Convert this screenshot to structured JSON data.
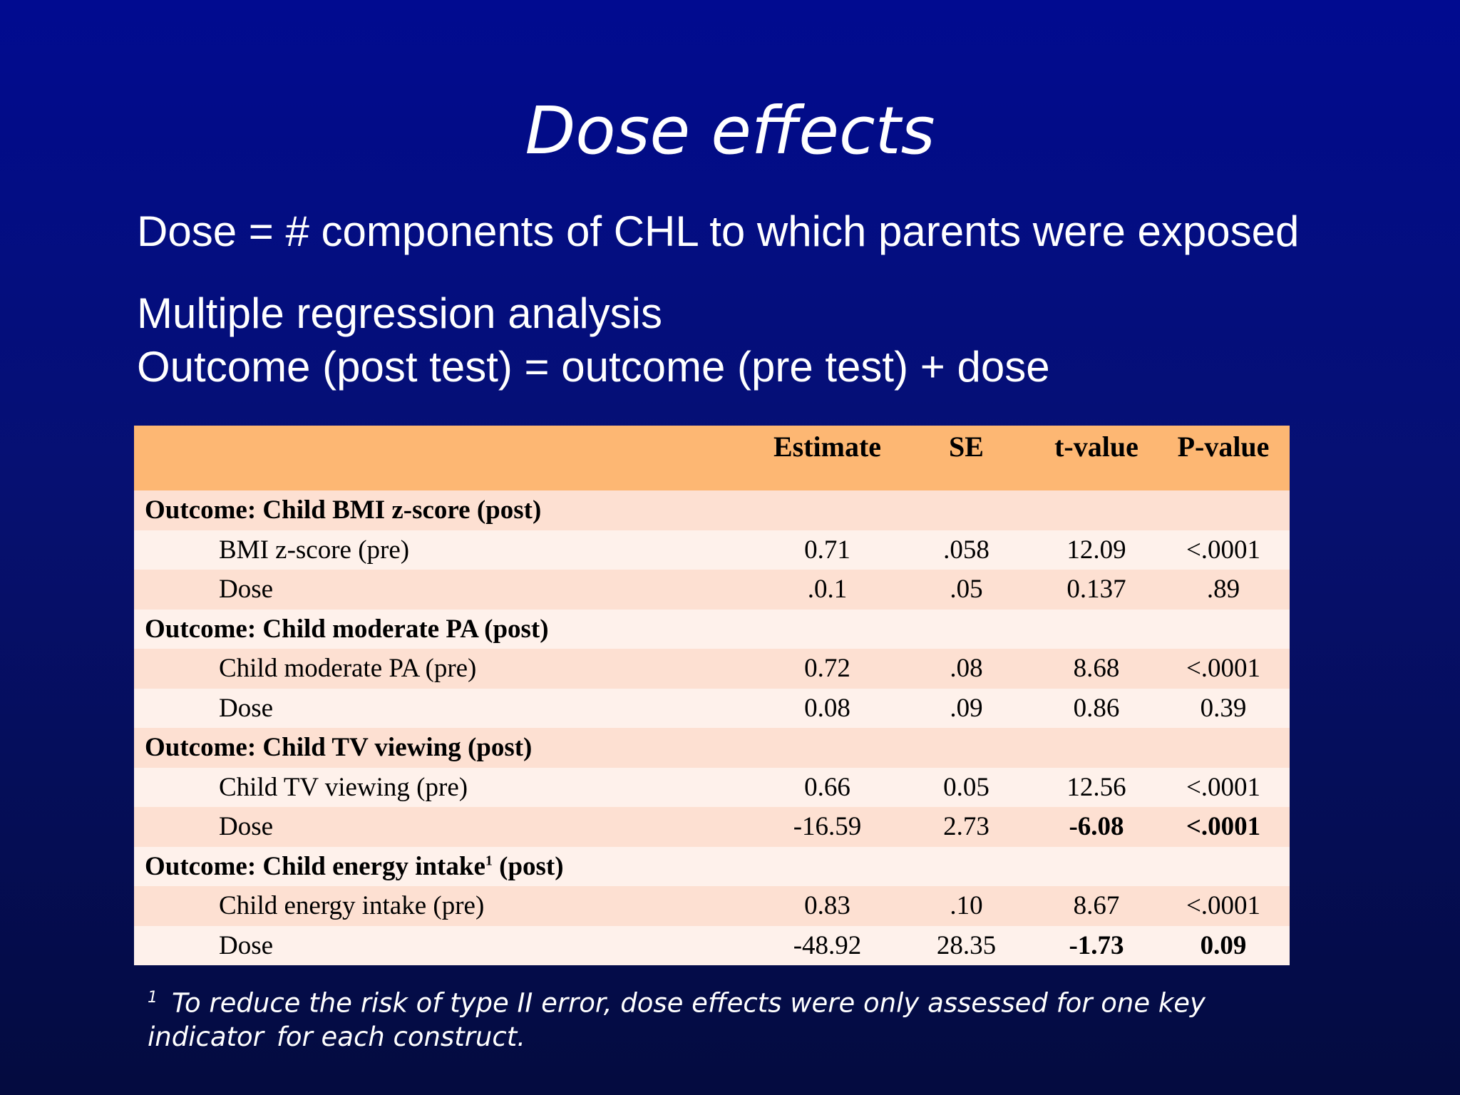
{
  "title": "Dose effects",
  "lines": [
    "Dose = # components of CHL to which parents were exposed",
    "Multiple regression analysis",
    "Outcome (post test) = outcome (pre test) + dose"
  ],
  "table": {
    "headers": [
      "",
      "Estimate",
      "SE",
      "t-value",
      "P-value"
    ],
    "groups": [
      {
        "label": "Outcome: Child BMI z-score (post)",
        "rows": [
          {
            "label": "BMI z-score (pre)",
            "estimate": "0.71",
            "se": ".058",
            "t": "12.09",
            "p": "<.0001"
          },
          {
            "label": "Dose",
            "estimate": ".0.1",
            "se": ".05",
            "t": "0.137",
            "p": ".89"
          }
        ]
      },
      {
        "label": "Outcome: Child moderate PA (post)",
        "rows": [
          {
            "label": "Child moderate PA (pre)",
            "estimate": "0.72",
            "se": ".08",
            "t": "8.68",
            "p": "<.0001"
          },
          {
            "label": "Dose",
            "estimate": "0.08",
            "se": ".09",
            "t": "0.86",
            "p": "0.39"
          }
        ]
      },
      {
        "label": "Outcome: Child TV viewing (post)",
        "rows": [
          {
            "label": "Child TV viewing (pre)",
            "estimate": "0.66",
            "se": "0.05",
            "t": "12.56",
            "p": "<.0001"
          },
          {
            "label": "Dose",
            "estimate": "-16.59",
            "se": "2.73",
            "t": "-6.08",
            "p": "<.0001"
          }
        ]
      },
      {
        "label_before": "Outcome: Child energy intake",
        "label_sup": "1",
        "label_after": " (post)",
        "rows": [
          {
            "label": "Child energy intake (pre)",
            "estimate": "0.83",
            "se": ".10",
            "t": "8.67",
            "p": "<.0001"
          },
          {
            "label": "Dose",
            "estimate": "-48.92",
            "se": "28.35",
            "t": "-1.73",
            "p": "0.09"
          }
        ]
      }
    ]
  },
  "footnote": {
    "mark": "1",
    "text_a": "To reduce the risk of type II error, dose effects were only assessed for one key indicator",
    "text_b": "for each construct."
  }
}
